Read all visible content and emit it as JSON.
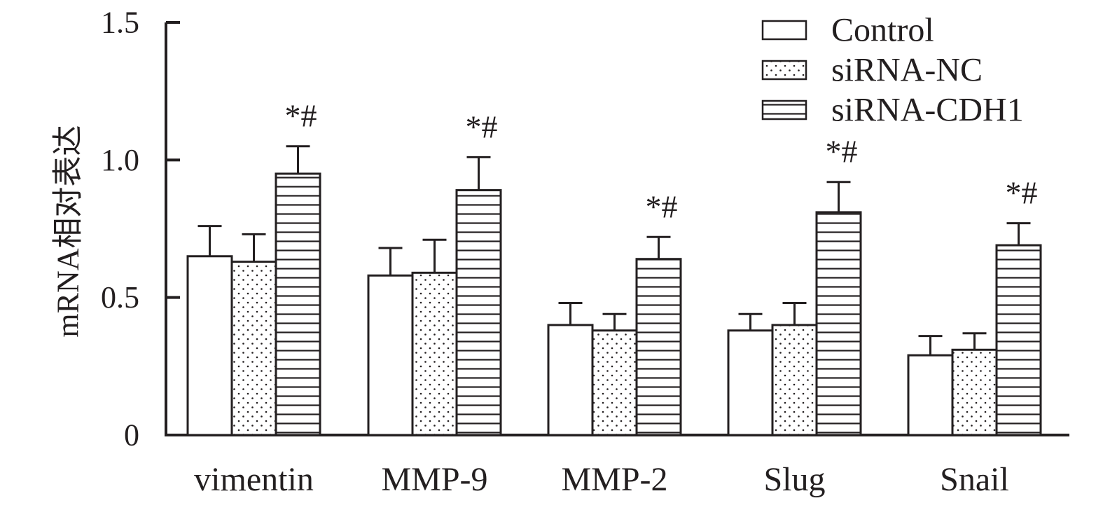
{
  "chart_data": {
    "type": "bar",
    "title": "",
    "xlabel": "",
    "ylabel": "mRNA相对表达",
    "ylim": [
      0,
      1.5
    ],
    "yticks": [
      {
        "value": 0,
        "label": "0"
      },
      {
        "value": 0.5,
        "label": "0.5"
      },
      {
        "value": 1.0,
        "label": "1.0"
      },
      {
        "value": 1.5,
        "label": "1.5"
      }
    ],
    "categories": [
      "vimentin",
      "MMP-9",
      "MMP-2",
      "Slug",
      "Snail"
    ],
    "series": [
      {
        "name": "Control",
        "pattern": "none",
        "values": [
          0.65,
          0.58,
          0.4,
          0.38,
          0.29
        ],
        "errors": [
          0.11,
          0.1,
          0.08,
          0.06,
          0.07
        ],
        "annotations": [
          "",
          "",
          "",
          "",
          ""
        ]
      },
      {
        "name": "siRNA-NC",
        "pattern": "dots",
        "values": [
          0.63,
          0.59,
          0.38,
          0.4,
          0.31
        ],
        "errors": [
          0.1,
          0.12,
          0.06,
          0.08,
          0.06
        ],
        "annotations": [
          "",
          "",
          "",
          "",
          ""
        ]
      },
      {
        "name": "siRNA-CDH1",
        "pattern": "horizontal-lines",
        "values": [
          0.95,
          0.89,
          0.64,
          0.81,
          0.69
        ],
        "errors": [
          0.1,
          0.12,
          0.08,
          0.11,
          0.08
        ],
        "annotations": [
          "*#",
          "*#",
          "*#",
          "*#",
          "*#"
        ]
      }
    ],
    "grid": false,
    "legend_position": "top-right",
    "colors": {
      "ink": "#231f20",
      "fill": "#ffffff"
    }
  }
}
